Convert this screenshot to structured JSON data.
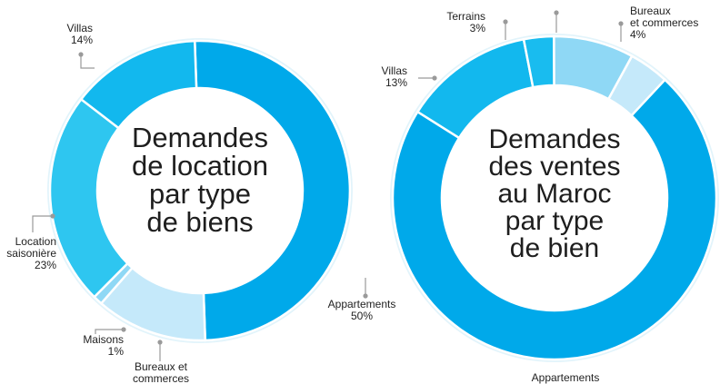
{
  "chart_data": [
    {
      "type": "donut",
      "center_title": [
        "Demandes",
        "de location",
        "par type",
        "de biens"
      ],
      "slices": [
        {
          "label": [
            "Appartements",
            "50%"
          ],
          "value": 50,
          "color": "#00a9ea"
        },
        {
          "label": [
            "Bureaux et",
            "commerces"
          ],
          "value": 12,
          "color": "#c5e9fa"
        },
        {
          "label": [
            "Maisons",
            "1%"
          ],
          "value": 1,
          "color": "#8fd8f5"
        },
        {
          "label": [
            "Location",
            "saisonière",
            "23%"
          ],
          "value": 23,
          "color": "#2ec6f0"
        },
        {
          "label": [
            "Villas",
            "14%"
          ],
          "value": 14,
          "color": "#12b8ee"
        }
      ]
    },
    {
      "type": "donut",
      "center_title": [
        "Demandes",
        "des ventes",
        "au Maroc",
        "par type",
        "de bien"
      ],
      "slices": [
        {
          "label": [
            "Appartements"
          ],
          "value": 72,
          "color": "#00a9ea"
        },
        {
          "label": [
            "Villas",
            "13%"
          ],
          "value": 13,
          "color": "#12b8ee"
        },
        {
          "label": [
            "Terrains",
            "3%"
          ],
          "value": 3,
          "color": "#19bcef"
        },
        {
          "label": [],
          "value": 8,
          "color": "#8fd8f5"
        },
        {
          "label": [
            "Bureaux",
            "et commerces",
            "4%"
          ],
          "value": 4,
          "color": "#c5e9fa"
        }
      ]
    }
  ]
}
